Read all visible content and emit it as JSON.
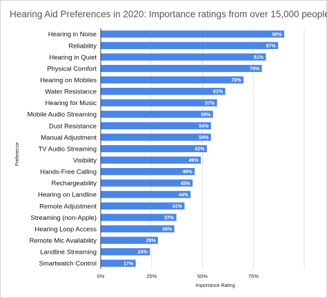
{
  "chart_data": {
    "type": "bar",
    "orientation": "horizontal",
    "title": "Hearing Aid Preferences in 2020: Importance ratings from over 15,000 people",
    "xlabel": "Importance Rating",
    "ylabel": "Preference",
    "xlim": [
      0,
      100
    ],
    "xticks": [
      "0%",
      "25%",
      "50%",
      "75%"
    ],
    "grid": true,
    "bar_color": "#4a86e8",
    "categories": [
      "Hearing in Noise",
      "Reliability",
      "Hearing in Quiet",
      "Physical Comfort",
      "Hearing on Mobiles",
      "Water Resistance",
      "Hearing for Music",
      "Mobile Audio Streaming",
      "Dust Resistance",
      "Manual Adjustment",
      "TV Audio Streaming",
      "Visibility",
      "Hands-Free Calling",
      "Rechargeability",
      "Hearing on Landline",
      "Remote Adjustment",
      "Streaming (non-Apple)",
      "Hearing Loop Access",
      "Remote Mic Availability",
      "Landline Streaming",
      "Smartwatch Control"
    ],
    "values": [
      90,
      87,
      81,
      79,
      70,
      61,
      57,
      55,
      54,
      54,
      52,
      49,
      46,
      45,
      44,
      41,
      37,
      36,
      28,
      24,
      17
    ],
    "value_labels": [
      "90%",
      "87%",
      "81%",
      "79%",
      "70%",
      "61%",
      "57%",
      "55%",
      "54%",
      "54%",
      "52%",
      "49%",
      "46%",
      "45%",
      "44%",
      "41%",
      "37%",
      "36%",
      "28%",
      "24%",
      "17%"
    ]
  }
}
